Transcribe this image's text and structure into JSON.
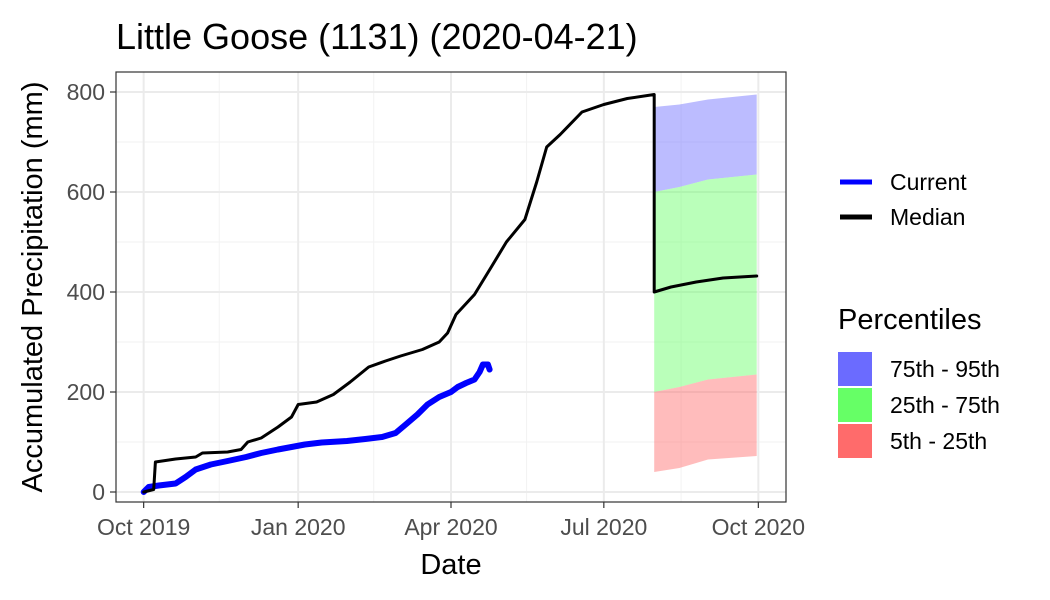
{
  "chart_data": {
    "type": "line",
    "title": "Little Goose (1131) (2020-04-21)",
    "xlabel": "Date",
    "ylabel": "Accumulated Precipitation (mm)",
    "xlim": [
      "2019-10-01",
      "2020-10-01"
    ],
    "ylim": [
      -20,
      840
    ],
    "x_ticks": [
      {
        "date": "2019-10-01",
        "label": "Oct 2019"
      },
      {
        "date": "2020-01-01",
        "label": "Jan 2020"
      },
      {
        "date": "2020-04-01",
        "label": "Apr 2020"
      },
      {
        "date": "2020-07-01",
        "label": "Jul 2020"
      },
      {
        "date": "2020-10-01",
        "label": "Oct 2020"
      }
    ],
    "x_minor_ticks": [
      "2019-11-15",
      "2020-02-15",
      "2020-05-16",
      "2020-08-16"
    ],
    "y_ticks": [
      0,
      200,
      400,
      600,
      800
    ],
    "y_minor_ticks": [
      100,
      300,
      500,
      700
    ],
    "grid": true,
    "legend_position": "right",
    "series": [
      {
        "name": "Current",
        "color": "#0000ff",
        "points": [
          [
            "2019-10-01",
            0
          ],
          [
            "2019-10-04",
            10
          ],
          [
            "2019-10-10",
            13
          ],
          [
            "2019-10-20",
            17
          ],
          [
            "2019-10-26",
            30
          ],
          [
            "2019-11-01",
            45
          ],
          [
            "2019-11-10",
            55
          ],
          [
            "2019-11-20",
            62
          ],
          [
            "2019-12-01",
            70
          ],
          [
            "2019-12-10",
            78
          ],
          [
            "2019-12-20",
            85
          ],
          [
            "2019-12-28",
            90
          ],
          [
            "2020-01-05",
            95
          ],
          [
            "2020-01-15",
            99
          ],
          [
            "2020-01-30",
            102
          ],
          [
            "2020-02-10",
            106
          ],
          [
            "2020-02-20",
            110
          ],
          [
            "2020-02-28",
            118
          ],
          [
            "2020-03-05",
            135
          ],
          [
            "2020-03-12",
            155
          ],
          [
            "2020-03-18",
            175
          ],
          [
            "2020-03-25",
            190
          ],
          [
            "2020-04-01",
            200
          ],
          [
            "2020-04-05",
            210
          ],
          [
            "2020-04-10",
            218
          ],
          [
            "2020-04-15",
            225
          ],
          [
            "2020-04-18",
            240
          ],
          [
            "2020-04-20",
            255
          ],
          [
            "2020-04-23",
            255
          ],
          [
            "2020-04-24",
            245
          ]
        ]
      },
      {
        "name": "Median",
        "color": "#000000",
        "points": [
          [
            "2019-10-01",
            0
          ],
          [
            "2019-10-07",
            5
          ],
          [
            "2019-10-08",
            60
          ],
          [
            "2019-10-20",
            66
          ],
          [
            "2019-11-01",
            70
          ],
          [
            "2019-11-05",
            78
          ],
          [
            "2019-11-20",
            80
          ],
          [
            "2019-11-28",
            85
          ],
          [
            "2019-12-02",
            100
          ],
          [
            "2019-12-10",
            108
          ],
          [
            "2019-12-20",
            130
          ],
          [
            "2019-12-28",
            150
          ],
          [
            "2020-01-01",
            175
          ],
          [
            "2020-01-12",
            180
          ],
          [
            "2020-01-22",
            195
          ],
          [
            "2020-02-01",
            220
          ],
          [
            "2020-02-12",
            250
          ],
          [
            "2020-02-22",
            262
          ],
          [
            "2020-03-02",
            272
          ],
          [
            "2020-03-15",
            285
          ],
          [
            "2020-03-25",
            300
          ],
          [
            "2020-03-30",
            318
          ],
          [
            "2020-04-04",
            355
          ],
          [
            "2020-04-15",
            395
          ],
          [
            "2020-04-25",
            450
          ],
          [
            "2020-05-04",
            500
          ],
          [
            "2020-05-15",
            545
          ],
          [
            "2020-05-22",
            620
          ],
          [
            "2020-05-28",
            690
          ],
          [
            "2020-06-05",
            715
          ],
          [
            "2020-06-18",
            760
          ],
          [
            "2020-07-01",
            775
          ],
          [
            "2020-07-15",
            787
          ],
          [
            "2020-07-31",
            795
          ],
          [
            "2020-07-31",
            400
          ],
          [
            "2020-08-10",
            410
          ],
          [
            "2020-08-25",
            420
          ],
          [
            "2020-09-10",
            428
          ],
          [
            "2020-09-30",
            432
          ]
        ]
      }
    ],
    "bands": [
      {
        "name": "75th - 95th",
        "color": "#6b6bff",
        "fill_opacity": 0.45,
        "points": [
          [
            "2020-07-31",
            600,
            770
          ],
          [
            "2020-08-15",
            610,
            775
          ],
          [
            "2020-09-01",
            625,
            785
          ],
          [
            "2020-09-30",
            635,
            795
          ]
        ]
      },
      {
        "name": "25th - 75th",
        "color": "#66ff66",
        "fill_opacity": 0.45,
        "points": [
          [
            "2020-07-31",
            200,
            600
          ],
          [
            "2020-08-15",
            210,
            610
          ],
          [
            "2020-09-01",
            225,
            625
          ],
          [
            "2020-09-30",
            235,
            635
          ]
        ]
      },
      {
        "name": "5th - 25th",
        "color": "#ff6b6b",
        "fill_opacity": 0.45,
        "points": [
          [
            "2020-07-31",
            40,
            200
          ],
          [
            "2020-08-15",
            48,
            210
          ],
          [
            "2020-09-01",
            65,
            225
          ],
          [
            "2020-09-30",
            72,
            235
          ]
        ]
      }
    ],
    "legend": {
      "lines": [
        {
          "label": "Current",
          "color": "#0000ff"
        },
        {
          "label": "Median",
          "color": "#000000"
        }
      ],
      "fill_title": "Percentiles",
      "fills": [
        {
          "label": "75th - 95th",
          "color": "#6b6bff"
        },
        {
          "label": "25th - 75th",
          "color": "#66ff66"
        },
        {
          "label": "5th - 25th",
          "color": "#ff6b6b"
        }
      ]
    }
  }
}
